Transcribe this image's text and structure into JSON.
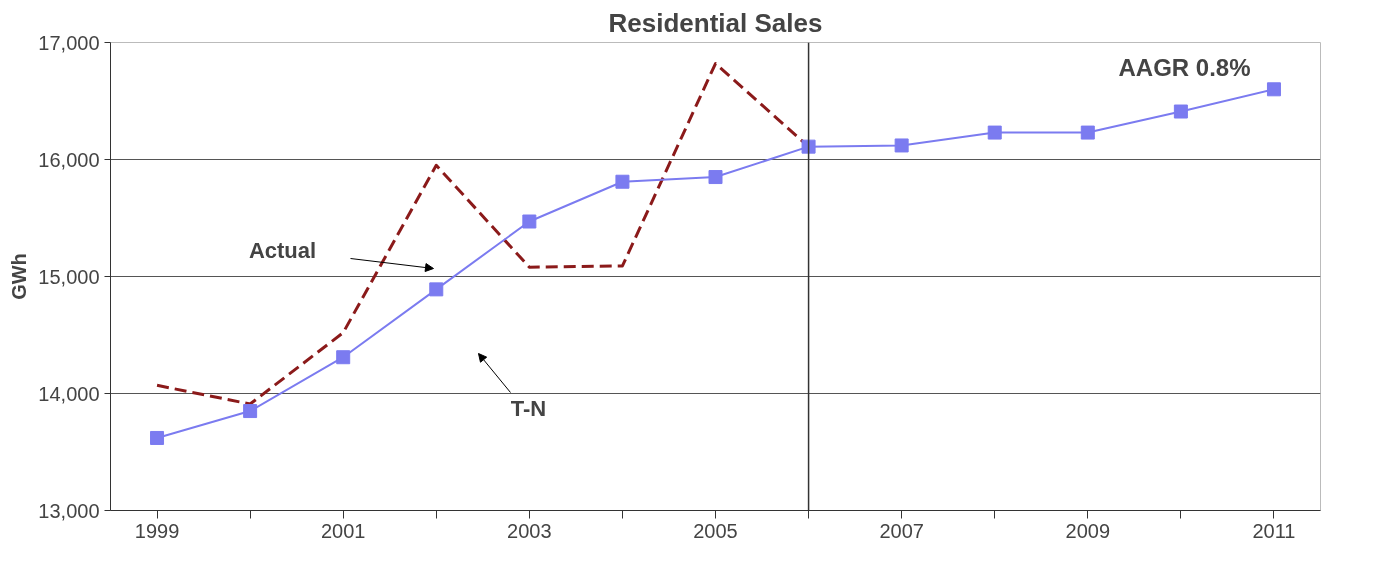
{
  "chart_data": {
    "type": "line",
    "title": "Residential Sales",
    "ylabel": "GWh",
    "x": [
      1999,
      2000,
      2001,
      2002,
      2003,
      2004,
      2005,
      2006,
      2007,
      2008,
      2009,
      2010,
      2011
    ],
    "series": [
      {
        "color": "#8b1a1a",
        "line_style": "dashed",
        "marker": "none",
        "values": [
          14070,
          13910,
          14520,
          15950,
          15080,
          15090,
          16820,
          16110,
          null,
          null,
          null,
          null,
          null
        ]
      },
      {
        "color": "#7b7bf0",
        "line_style": "solid",
        "marker": "square",
        "values": [
          13620,
          13850,
          14310,
          14890,
          15470,
          15810,
          15850,
          16110,
          16120,
          16230,
          16230,
          16410,
          16600
        ]
      }
    ],
    "xlim": [
      1998.5,
      2011.5
    ],
    "xticks": [
      1999,
      {
        "value": 2000,
        "label": null
      },
      2001,
      {
        "value": 2002,
        "label": null
      },
      2003,
      {
        "value": 2004,
        "label": null
      },
      2005,
      {
        "value": 2006,
        "label": null
      },
      2007,
      {
        "value": 2008,
        "label": null
      },
      2009,
      {
        "value": 2010,
        "label": null
      },
      2011
    ],
    "ylim": [
      13000,
      17000
    ],
    "yticks": [
      {
        "value": 13000,
        "label": "13,000"
      },
      {
        "value": 14000,
        "label": "14,000"
      },
      {
        "value": 15000,
        "label": "15,000"
      },
      {
        "value": 16000,
        "label": "16,000"
      },
      {
        "value": 17000,
        "label": "17,000"
      }
    ],
    "grid": "y",
    "ref_lines": [
      {
        "axis": "x",
        "value": 2006,
        "color": "#333333"
      }
    ],
    "annotations": [
      "Actual",
      "T-N",
      "AAGR 0.8%"
    ]
  }
}
